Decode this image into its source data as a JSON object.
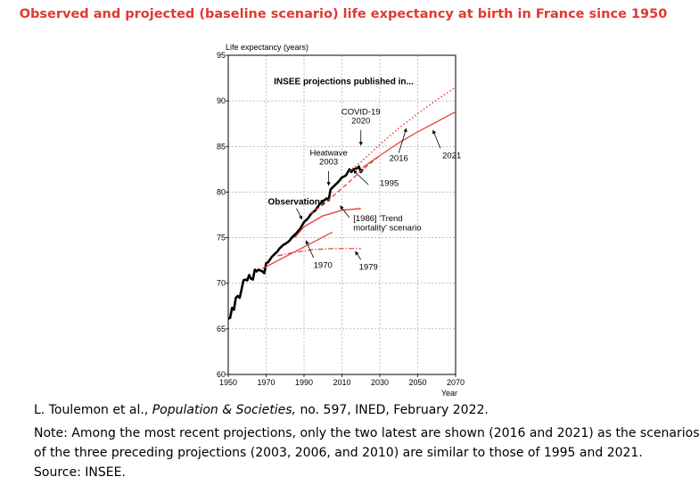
{
  "header": {
    "title": "Observed and projected (baseline scenario) life expectancy at birth in France since 1950"
  },
  "source": {
    "citation_author": "L. Toulemon et al.,",
    "citation_journal": "Population & Societies,",
    "citation_rest": "no. 597, INED, February 2022.",
    "note_line1": "Note: Among the most recent projections, only the two latest are shown (2016 and 2021) as the scenarios",
    "note_line2": "of the three preceding projections (2003, 2006, and 2010) are similar to those of 1995 and 2021.",
    "source_line": "Source: INSEE."
  },
  "colors": {
    "observed": "#000000",
    "projection": "#e03a2f",
    "grid": "#999999"
  },
  "chart_data": {
    "type": "line",
    "title": "INSEE projections published in...",
    "xlabel": "Year",
    "ylabel": "Life expectancy (years)",
    "xlim": [
      1950,
      2070
    ],
    "ylim": [
      60,
      95
    ],
    "xticks": [
      1950,
      1970,
      1990,
      2010,
      2030,
      2050,
      2070
    ],
    "yticks": [
      60,
      65,
      70,
      75,
      80,
      85,
      90,
      95
    ],
    "series": [
      {
        "name": "Observations",
        "style": "solid-thick",
        "x": [
          1950,
          1951,
          1952,
          1953,
          1954,
          1955,
          1956,
          1957,
          1958,
          1959,
          1960,
          1961,
          1962,
          1963,
          1964,
          1965,
          1966,
          1967,
          1968,
          1969,
          1970,
          1971,
          1972,
          1973,
          1974,
          1975,
          1976,
          1977,
          1978,
          1979,
          1980,
          1982,
          1984,
          1986,
          1988,
          1990,
          1992,
          1994,
          1996,
          1998,
          2000,
          2002,
          2003,
          2004,
          2006,
          2008,
          2010,
          2012,
          2014,
          2015,
          2016,
          2018,
          2019,
          2020,
          2021
        ],
        "y": [
          66.1,
          66.2,
          67.3,
          67.1,
          68.4,
          68.6,
          68.4,
          69.3,
          70.3,
          70.4,
          70.3,
          70.9,
          70.5,
          70.4,
          71.5,
          71.3,
          71.5,
          71.4,
          71.3,
          71.1,
          72.2,
          72.3,
          72.6,
          72.9,
          73.1,
          73.3,
          73.5,
          73.8,
          74.0,
          74.2,
          74.3,
          74.6,
          75.1,
          75.5,
          76.0,
          76.7,
          77.1,
          77.7,
          78.0,
          78.6,
          79.0,
          79.3,
          79.1,
          80.3,
          80.7,
          81.1,
          81.6,
          81.8,
          82.5,
          82.2,
          82.5,
          82.6,
          82.8,
          82.2,
          82.5
        ]
      },
      {
        "name": "1970",
        "style": "solid",
        "x": [
          1968,
          2005
        ],
        "y": [
          71.6,
          75.6
        ]
      },
      {
        "name": "1979",
        "style": "dash-dot",
        "x": [
          1976,
          1985,
          1995,
          2005,
          2020
        ],
        "y": [
          73.0,
          73.4,
          73.7,
          73.8,
          73.8
        ]
      },
      {
        "name": "[1986] 'Trend mortality' scenario",
        "style": "solid",
        "x": [
          1985,
          1990,
          2000,
          2010,
          2020
        ],
        "y": [
          75.0,
          76.2,
          77.4,
          78.0,
          78.2
        ]
      },
      {
        "name": "1995",
        "style": "dashed",
        "x": [
          1993,
          2000,
          2010,
          2020,
          2030
        ],
        "y": [
          77.6,
          78.6,
          80.4,
          82.3,
          84.0
        ]
      },
      {
        "name": "2016",
        "style": "dotted",
        "x": [
          2014,
          2020,
          2030,
          2040,
          2050,
          2060,
          2070
        ],
        "y": [
          82.3,
          83.3,
          85.2,
          87.0,
          88.6,
          90.1,
          91.5
        ]
      },
      {
        "name": "2021",
        "style": "solid",
        "x": [
          2021,
          2030,
          2040,
          2050,
          2060,
          2070
        ],
        "y": [
          82.7,
          84.0,
          85.4,
          86.6,
          87.7,
          88.8
        ]
      }
    ],
    "annotations": [
      {
        "id": "covid_1",
        "text": "COVID-19",
        "x": 2020,
        "y": 88.5
      },
      {
        "id": "covid_2",
        "text": "2020",
        "x": 2020,
        "y": 87.5
      },
      {
        "id": "heat_1",
        "text": "Heatwave",
        "x": 2003,
        "y": 84.0
      },
      {
        "id": "heat_2",
        "text": "2003",
        "x": 2003,
        "y": 83.0
      },
      {
        "id": "obs",
        "text": "Observations",
        "x": 1986,
        "y": 78.6
      },
      {
        "id": "l2016",
        "text": "2016",
        "x": 2035,
        "y": 83.4
      },
      {
        "id": "l2021",
        "text": "2021",
        "x": 2063,
        "y": 83.7
      },
      {
        "id": "l1995",
        "text": "1995",
        "x": 2030,
        "y": 80.7
      },
      {
        "id": "l1986_1",
        "text": "[1986] 'Trend",
        "x": 2016,
        "y": 76.8
      },
      {
        "id": "l1986_2",
        "text": "mortality' scenario",
        "x": 2016,
        "y": 75.8
      },
      {
        "id": "l1970",
        "text": "1970",
        "x": 1995,
        "y": 71.7
      },
      {
        "id": "l1979",
        "text": "1979",
        "x": 2019,
        "y": 71.5
      }
    ]
  }
}
